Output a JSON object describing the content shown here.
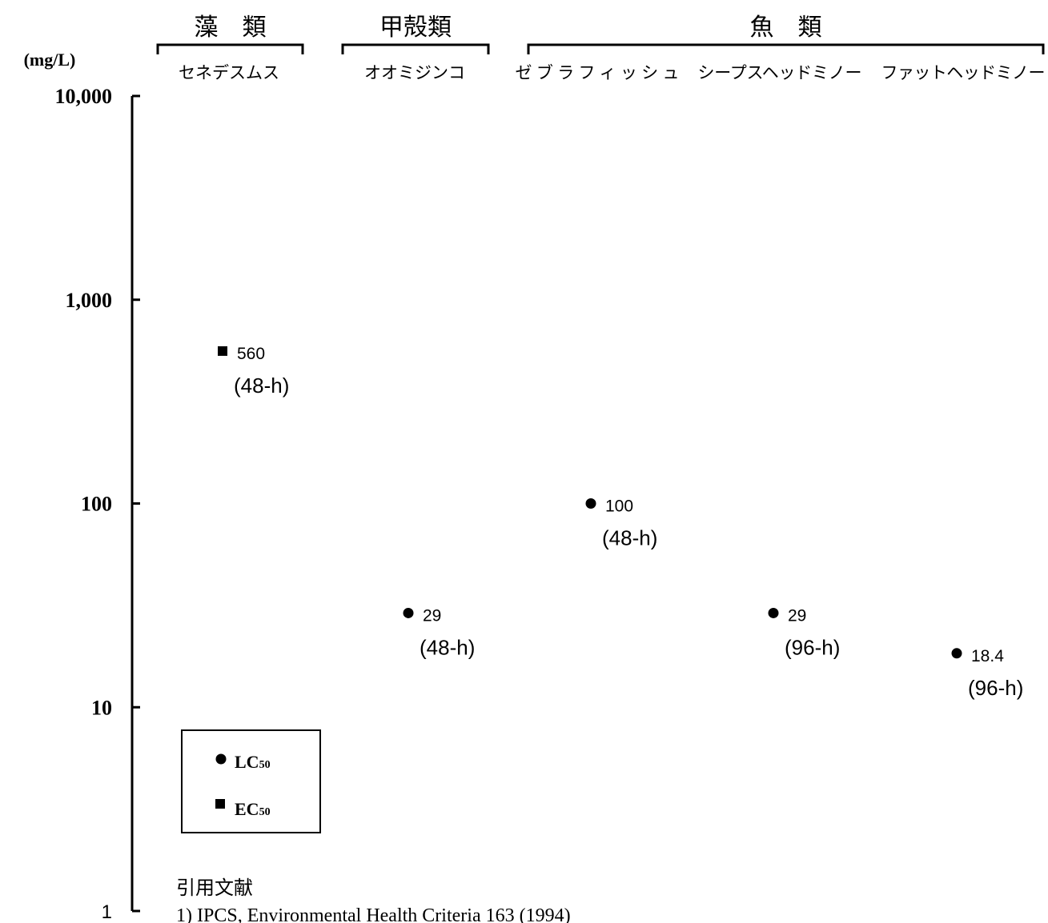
{
  "chart_data": {
    "type": "scatter",
    "ylabel": "(mg/L)",
    "yscale": "log",
    "ylim": [
      1,
      10000
    ],
    "y_ticks": [
      {
        "value": 10000,
        "label": "10,000",
        "bold": true
      },
      {
        "value": 1000,
        "label": "1,000",
        "bold": true
      },
      {
        "value": 100,
        "label": "100",
        "bold": true
      },
      {
        "value": 10,
        "label": "10",
        "bold": true
      },
      {
        "value": 1,
        "label": "1",
        "bold": false
      }
    ],
    "groups": [
      {
        "label": "藻　類",
        "species": [
          "セネデスムス"
        ]
      },
      {
        "label": "甲殻類",
        "species": [
          "オオミジンコ"
        ]
      },
      {
        "label": "魚　類",
        "species": [
          "ゼブラフィッシュ",
          "シープスヘッドミノー",
          "ファットヘッドミノー"
        ]
      }
    ],
    "points": [
      {
        "species": "セネデスムス",
        "value": 560,
        "label": "560",
        "duration": "(48-h)",
        "marker": "square"
      },
      {
        "species": "オオミジンコ",
        "value": 29,
        "label": "29",
        "duration": "(48-h)",
        "marker": "circle"
      },
      {
        "species": "ゼブラフィッシュ",
        "value": 100,
        "label": "100",
        "duration": "(48-h)",
        "marker": "circle"
      },
      {
        "species": "シープスヘッドミノー",
        "value": 29,
        "label": "29",
        "duration": "(96-h)",
        "marker": "circle"
      },
      {
        "species": "ファットヘッドミノー",
        "value": 18.4,
        "label": "18.4",
        "duration": "(96-h)",
        "marker": "circle"
      }
    ],
    "legend": {
      "position": "bottom-left",
      "entries": [
        {
          "marker": "circle",
          "main": "LC",
          "sub": "50"
        },
        {
          "marker": "square",
          "main": "EC",
          "sub": "50"
        }
      ]
    },
    "reference": {
      "heading": "引用文献",
      "text": "1) IPCS, Environmental Health Criteria 163 (1994)"
    },
    "colors": {
      "marker": "#000000",
      "axis": "#000000",
      "background": "#ffffff"
    }
  }
}
